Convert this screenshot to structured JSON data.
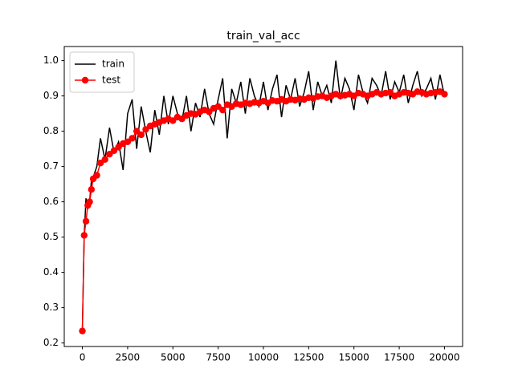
{
  "chart_data": {
    "type": "line",
    "title": "train_val_acc",
    "x": [
      0,
      100,
      200,
      300,
      400,
      500,
      600,
      800,
      1000,
      1250,
      1500,
      1750,
      2000,
      2250,
      2500,
      2750,
      3000,
      3250,
      3500,
      3750,
      4000,
      4250,
      4500,
      4750,
      5000,
      5250,
      5500,
      5750,
      6000,
      6250,
      6500,
      6750,
      7000,
      7250,
      7500,
      7750,
      8000,
      8250,
      8500,
      8750,
      9000,
      9250,
      9500,
      9750,
      10000,
      10250,
      10500,
      10750,
      11000,
      11250,
      11500,
      11750,
      12000,
      12250,
      12500,
      12750,
      13000,
      13250,
      13500,
      13750,
      14000,
      14250,
      14500,
      14750,
      15000,
      15250,
      15500,
      15750,
      16000,
      16250,
      16500,
      16750,
      17000,
      17250,
      17500,
      17750,
      18000,
      18250,
      18500,
      18750,
      19000,
      19250,
      19500,
      19750,
      20000
    ],
    "series": [
      {
        "name": "train",
        "color": "#000000",
        "marker": false,
        "values": [
          0.234,
          0.5,
          0.61,
          0.58,
          0.6,
          0.66,
          0.67,
          0.7,
          0.78,
          0.72,
          0.81,
          0.74,
          0.77,
          0.69,
          0.85,
          0.89,
          0.75,
          0.87,
          0.8,
          0.74,
          0.86,
          0.79,
          0.9,
          0.82,
          0.9,
          0.85,
          0.83,
          0.9,
          0.8,
          0.88,
          0.84,
          0.92,
          0.85,
          0.82,
          0.89,
          0.95,
          0.78,
          0.92,
          0.88,
          0.94,
          0.85,
          0.95,
          0.9,
          0.87,
          0.94,
          0.86,
          0.92,
          0.96,
          0.84,
          0.93,
          0.89,
          0.95,
          0.87,
          0.91,
          0.97,
          0.86,
          0.94,
          0.9,
          0.93,
          0.88,
          1.0,
          0.89,
          0.95,
          0.92,
          0.86,
          0.96,
          0.91,
          0.88,
          0.95,
          0.93,
          0.9,
          0.97,
          0.89,
          0.94,
          0.91,
          0.96,
          0.88,
          0.93,
          0.97,
          0.9,
          0.92,
          0.95,
          0.89,
          0.96,
          0.9
        ]
      },
      {
        "name": "test",
        "color": "#ff0000",
        "marker": true,
        "values": [
          0.234,
          0.505,
          0.545,
          0.59,
          0.6,
          0.635,
          0.665,
          0.675,
          0.71,
          0.72,
          0.735,
          0.745,
          0.755,
          0.765,
          0.77,
          0.78,
          0.8,
          0.79,
          0.805,
          0.815,
          0.82,
          0.825,
          0.83,
          0.835,
          0.83,
          0.84,
          0.835,
          0.845,
          0.85,
          0.848,
          0.855,
          0.86,
          0.855,
          0.865,
          0.87,
          0.86,
          0.875,
          0.87,
          0.878,
          0.875,
          0.88,
          0.878,
          0.882,
          0.88,
          0.885,
          0.88,
          0.887,
          0.885,
          0.89,
          0.885,
          0.89,
          0.888,
          0.892,
          0.89,
          0.895,
          0.893,
          0.898,
          0.9,
          0.895,
          0.9,
          0.905,
          0.9,
          0.902,
          0.905,
          0.9,
          0.908,
          0.905,
          0.9,
          0.905,
          0.91,
          0.905,
          0.908,
          0.91,
          0.9,
          0.905,
          0.91,
          0.908,
          0.905,
          0.912,
          0.91,
          0.905,
          0.908,
          0.91,
          0.912,
          0.905
        ]
      }
    ],
    "xlim": [
      -1000,
      21000
    ],
    "ylim": [
      0.19,
      1.04
    ],
    "xticks": [
      0,
      2500,
      5000,
      7500,
      10000,
      12500,
      15000,
      17500,
      20000
    ],
    "yticks": [
      0.2,
      0.3,
      0.4,
      0.5,
      0.6,
      0.7,
      0.8,
      0.9,
      {
        "value": 1,
        "label": "1.0"
      }
    ],
    "legend": "upper left"
  }
}
